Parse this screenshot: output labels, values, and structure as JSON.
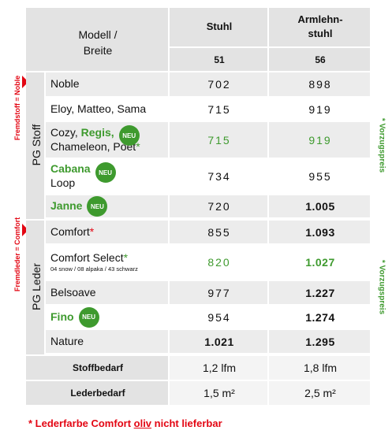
{
  "header": {
    "model_lines": [
      "Modell /",
      "Breite"
    ],
    "columns": [
      {
        "name_lines": [
          "Stuhl"
        ],
        "width": "51"
      },
      {
        "name_lines": [
          "Armlehn-",
          "stuhl"
        ],
        "width": "56"
      }
    ]
  },
  "groups": [
    {
      "label": "PG Stoff",
      "side_note": "Fremdstoff = Noble",
      "price_note": "* Vorzugspreis",
      "rows": [
        {
          "lines": [
            [
              {
                "text": "Noble"
              }
            ]
          ],
          "values": [
            "702",
            "898"
          ]
        },
        {
          "lines": [
            [
              {
                "text": "Eloy, Matteo, Sama"
              }
            ]
          ],
          "values": [
            "715",
            "919"
          ]
        },
        {
          "lines": [
            [
              {
                "text": "Cozy, "
              },
              {
                "text": "Regis,",
                "style": "green-bold"
              }
            ],
            [
              {
                "text": "Chameleon, Poet"
              },
              {
                "text": "*",
                "style": "green"
              }
            ]
          ],
          "badge": "NEU",
          "values": [
            "715",
            "919"
          ],
          "preferred": true
        },
        {
          "lines": [
            [
              {
                "text": "Cabana",
                "style": "green-bold"
              }
            ],
            [
              {
                "text": "Loop"
              }
            ]
          ],
          "badge": "NEU",
          "values": [
            "734",
            "955"
          ]
        },
        {
          "lines": [
            [
              {
                "text": "Janne",
                "style": "green-bold"
              }
            ]
          ],
          "badge": "NEU",
          "values": [
            "720",
            "1.005"
          ]
        }
      ]
    },
    {
      "label": "PG Leder",
      "side_note": "Fremdleder = Comfort",
      "price_note": "* Vorzugspreis",
      "rows": [
        {
          "lines": [
            [
              {
                "text": "Comfort"
              },
              {
                "text": "*",
                "style": "red"
              }
            ]
          ],
          "values": [
            "855",
            "1.093"
          ]
        },
        {
          "lines": [
            [
              {
                "text": "Comfort Select"
              },
              {
                "text": "*",
                "style": "green"
              }
            ]
          ],
          "sub": "04 snow / 08 alpaka / 43 schwarz",
          "values": [
            "820",
            "1.027"
          ],
          "preferred": true
        },
        {
          "lines": [
            [
              {
                "text": "Belsoave"
              }
            ]
          ],
          "values": [
            "977",
            "1.227"
          ]
        },
        {
          "lines": [
            [
              {
                "text": "Fino",
                "style": "green-bold"
              }
            ]
          ],
          "badge": "NEU",
          "values": [
            "954",
            "1.274"
          ]
        },
        {
          "lines": [
            [
              {
                "text": "Nature"
              }
            ]
          ],
          "values": [
            "1.021",
            "1.295"
          ]
        }
      ]
    }
  ],
  "footer_rows": [
    {
      "label": "Stoffbedarf",
      "values": [
        "1,2 lfm",
        "1,8 lfm"
      ]
    },
    {
      "label": "Lederbedarf",
      "values": [
        "1,5 m²",
        "2,5 m²"
      ]
    }
  ],
  "footnote": [
    {
      "text": "* Lederfarbe Comfort "
    },
    {
      "text": "oliv",
      "style": "underline"
    },
    {
      "text": " nicht lieferbar"
    }
  ]
}
